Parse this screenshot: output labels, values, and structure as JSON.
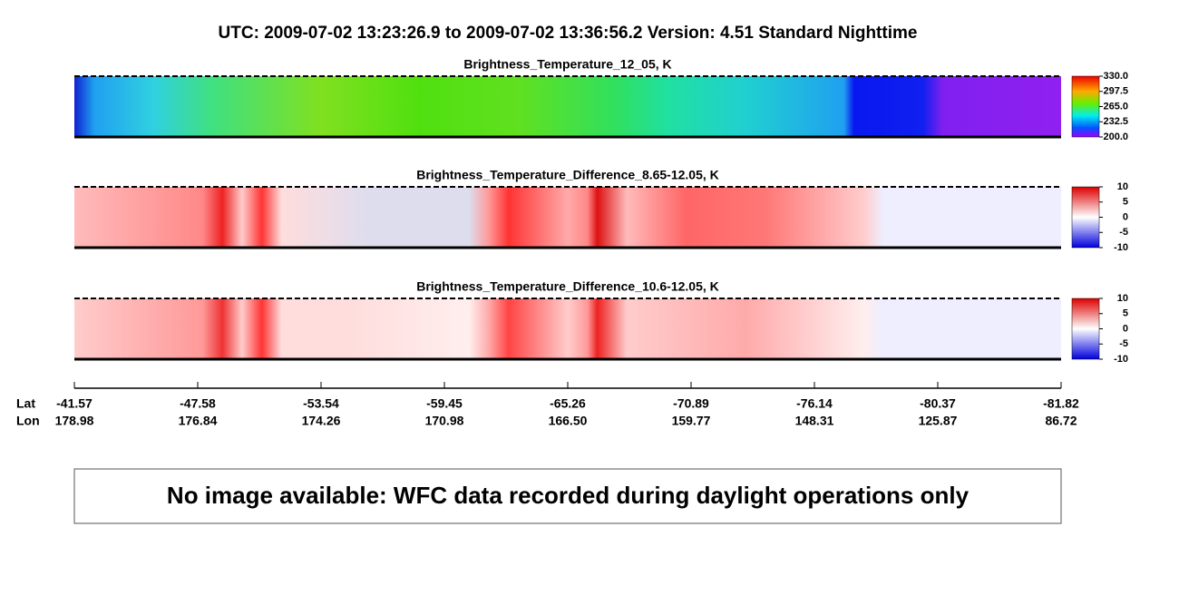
{
  "title": "UTC:  2009-07-02   13:23:26.9  to  2009-07-02   13:36:56.2    Version: 4.51  Standard Nighttime",
  "chart_data": [
    {
      "type": "heatmap",
      "title": "Brightness_Temperature_12_05, K",
      "clim": [
        200,
        330
      ],
      "cticks": [
        {
          "value": 330,
          "label": "330.0"
        },
        {
          "value": 297.5,
          "label": "297.5"
        },
        {
          "value": 265,
          "label": "265.0"
        },
        {
          "value": 232.5,
          "label": "232.5"
        },
        {
          "value": 200,
          "label": "200.0"
        }
      ]
    },
    {
      "type": "heatmap",
      "title": "Brightness_Temperature_Difference_8.65-12.05, K",
      "clim": [
        -10,
        10
      ],
      "cticks": [
        10,
        5,
        0,
        -5,
        -10
      ]
    },
    {
      "type": "heatmap",
      "title": "Brightness_Temperature_Difference_10.6-12.05, K",
      "clim": [
        -10,
        10
      ],
      "cticks": [
        10,
        5,
        0,
        -5,
        -10
      ]
    }
  ],
  "x_axis": {
    "row_labels": [
      "Lat",
      "Lon"
    ],
    "ticks": [
      {
        "lat": "-41.57",
        "lon": "178.98"
      },
      {
        "lat": "-47.58",
        "lon": "176.84"
      },
      {
        "lat": "-53.54",
        "lon": "174.26"
      },
      {
        "lat": "-59.45",
        "lon": "170.98"
      },
      {
        "lat": "-65.26",
        "lon": "166.50"
      },
      {
        "lat": "-70.89",
        "lon": "159.77"
      },
      {
        "lat": "-76.14",
        "lon": "148.31"
      },
      {
        "lat": "-80.37",
        "lon": "125.87"
      },
      {
        "lat": "-81.82",
        "lon": "86.72"
      }
    ]
  },
  "message": "No image available: WFC data recorded during daylight operations only"
}
